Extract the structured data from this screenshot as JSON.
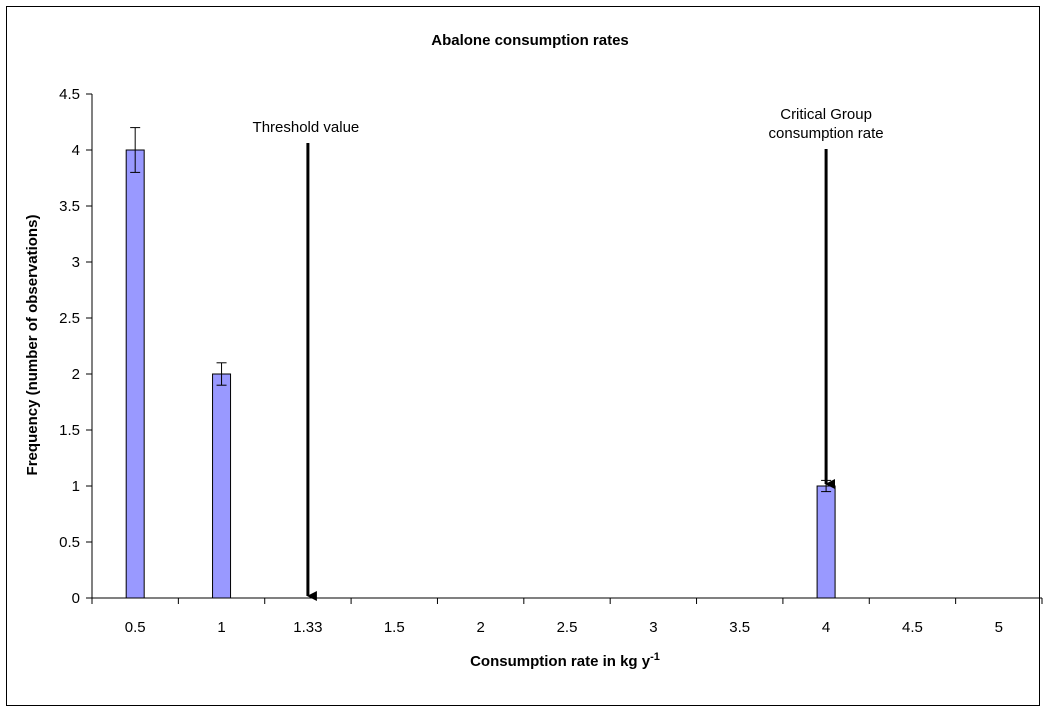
{
  "chart_data": {
    "type": "bar",
    "title": "Abalone consumption rates",
    "xlabel": "Consumption rate in kg y",
    "xlabel_superscript": "-1",
    "ylabel": "Frequency (number of observations)",
    "categories": [
      "0.5",
      "1",
      "1.33",
      "1.5",
      "2",
      "2.5",
      "3",
      "3.5",
      "4",
      "4.5",
      "5"
    ],
    "series": [
      {
        "values": [
          4,
          2,
          0,
          0,
          0,
          0,
          0,
          0,
          1,
          0,
          0
        ],
        "error": [
          0.2,
          0.1,
          0,
          0,
          0,
          0,
          0,
          0,
          0.05,
          0,
          0
        ],
        "color": "#9999ff"
      }
    ],
    "ylim": [
      0,
      4.5
    ],
    "yticks": [
      "0",
      "0.5",
      "1",
      "1.5",
      "2",
      "2.5",
      "3",
      "3.5",
      "4",
      "4.5"
    ],
    "grid": false,
    "legend": "none",
    "annotations": [
      {
        "lines": [
          "Threshold value"
        ],
        "category": "1.33"
      },
      {
        "lines": [
          "Critical Group",
          "consumption rate"
        ],
        "category": "4"
      }
    ]
  }
}
